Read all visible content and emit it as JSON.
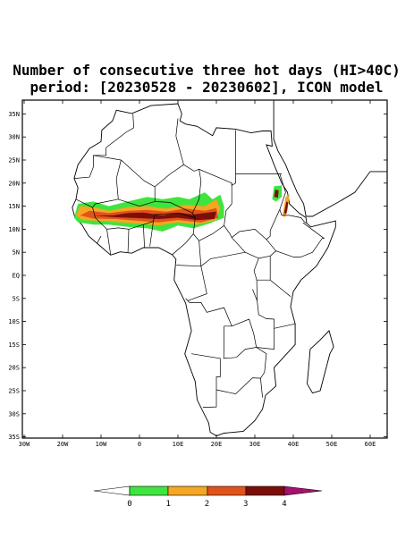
{
  "header": {
    "title_line1": "Number of consecutive three hot days (HI>40C)",
    "title_line2": "period: [20230528 - 20230602], ICON model"
  },
  "map": {
    "lat_labels": [
      "35N",
      "30N",
      "25N",
      "20N",
      "15N",
      "10N",
      "5N",
      "EQ",
      "5S",
      "10S",
      "15S",
      "20S",
      "25S",
      "30S",
      "35S"
    ],
    "lon_labels": [
      "30W",
      "20W",
      "10W",
      "0",
      "10E",
      "20E",
      "30E",
      "40E",
      "50E",
      "60E"
    ]
  },
  "colorbar": {
    "levels": [
      0,
      1,
      2,
      3,
      4
    ]
  }
}
